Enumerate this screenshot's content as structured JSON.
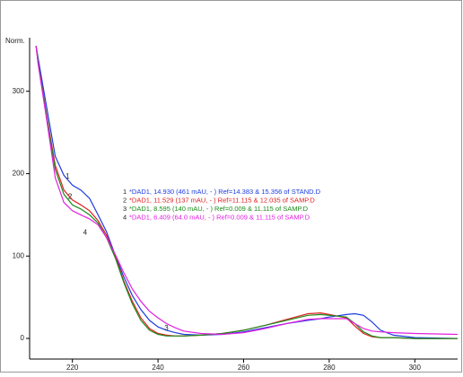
{
  "chart_data": {
    "type": "line",
    "y_label": "Norm.",
    "x": [
      211.5,
      212,
      214,
      216,
      218,
      220,
      222,
      224,
      226,
      228,
      230,
      232,
      234,
      236,
      238,
      240,
      242,
      244,
      246,
      250,
      255,
      260,
      265,
      270,
      275,
      278,
      280,
      284,
      286,
      288,
      290,
      292,
      295,
      300,
      310
    ],
    "xlim": [
      210,
      310
    ],
    "xticks": [
      220,
      240,
      260,
      280,
      300
    ],
    "ylim": [
      -25,
      365
    ],
    "yticks": [
      0,
      100,
      200,
      300
    ],
    "series": [
      {
        "label": "1",
        "label_at": [
          218.4,
          196
        ],
        "name": "*DAD1, 14.930 (461 mAU, - ) Ref=14.383 & 15.356 of STAND.D",
        "color": "#1c3ce0",
        "values": [
          355,
          340,
          280,
          221,
          198,
          186,
          180,
          170,
          150,
          129,
          101,
          75,
          52,
          35,
          22,
          14,
          10,
          7,
          5,
          4,
          5,
          8,
          13,
          18,
          22,
          24,
          26,
          29,
          30,
          28,
          20,
          10,
          4,
          1,
          0
        ]
      },
      {
        "label": "2",
        "label_at": [
          219,
          172
        ],
        "name": "*DAD1, 11.529 (137 mAU, - ) Ref=11.115 & 12.035 of SAMP.D",
        "color": "#e02020",
        "values": [
          355,
          335,
          270,
          210,
          180,
          168,
          162,
          155,
          143,
          125,
          100,
          70,
          45,
          25,
          12,
          6,
          4,
          3,
          3,
          4,
          6,
          10,
          16,
          23,
          30,
          31,
          29,
          25,
          15,
          6,
          2,
          1,
          1,
          0,
          0
        ]
      },
      {
        "label": "3",
        "label_at": [
          241.5,
          12
        ],
        "name": "*DAD1, 8.595 (140 mAU, - ) Ref=0.009 & 11.115 of SAMP.D",
        "color": "#1a8a1a",
        "values": [
          355,
          335,
          268,
          205,
          175,
          162,
          157,
          150,
          140,
          122,
          98,
          68,
          42,
          22,
          10,
          5,
          3,
          3,
          3,
          4,
          6,
          10,
          16,
          22,
          28,
          29,
          28,
          26,
          18,
          8,
          3,
          1,
          1,
          0,
          0
        ]
      },
      {
        "label": "4",
        "label_at": [
          222.5,
          128
        ],
        "name": "*DAD1, 6.409 (64.0 mAU, - ) Ref=0.009 & 11.115 of SAMP.D",
        "color": "#e020e0",
        "values": [
          355,
          333,
          265,
          195,
          165,
          155,
          150,
          145,
          138,
          122,
          102,
          80,
          60,
          45,
          33,
          25,
          18,
          13,
          9,
          6,
          5,
          7,
          12,
          18,
          23,
          24,
          24,
          24,
          18,
          12,
          9,
          8,
          7,
          6,
          5
        ]
      }
    ]
  }
}
